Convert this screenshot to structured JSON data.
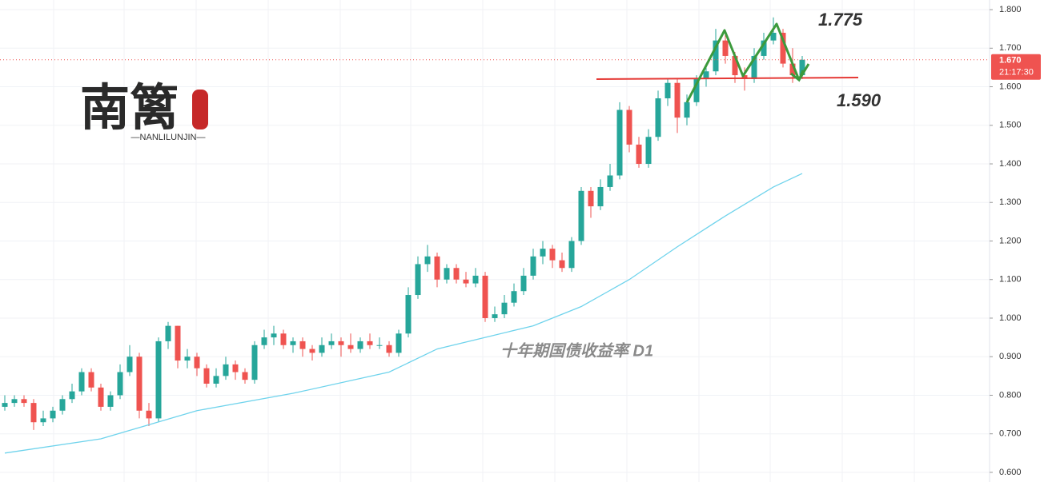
{
  "chart_data": {
    "type": "candlestick",
    "title": "十年期国债收益率  D1",
    "logo": "南篱",
    "logo_sub": "—NANLILUNJIN—",
    "annotations": [
      "1.775",
      "1.590"
    ],
    "up_color": "#26a69a",
    "down_color": "#ef5350",
    "grid": true,
    "ylim": [
      0.575,
      1.825
    ],
    "yticks": [
      {
        "value": 0.6,
        "label": "0.600"
      },
      {
        "value": 0.7,
        "label": "0.700"
      },
      {
        "value": 0.8,
        "label": "0.800"
      },
      {
        "value": 0.9,
        "label": "0.900"
      },
      {
        "value": 1.0,
        "label": "1.000"
      },
      {
        "value": 1.1,
        "label": "1.100"
      },
      {
        "value": 1.2,
        "label": "1.200"
      },
      {
        "value": 1.3,
        "label": "1.300"
      },
      {
        "value": 1.4,
        "label": "1.400"
      },
      {
        "value": 1.5,
        "label": "1.500"
      },
      {
        "value": 1.6,
        "label": "1.600"
      },
      {
        "value": 1.7,
        "label": "1.700"
      },
      {
        "value": 1.8,
        "label": "1.800"
      }
    ],
    "last_price": {
      "value": 1.67,
      "label": "1.670"
    },
    "countdown": "21:17:30",
    "candles": [
      [
        0.77,
        0.8,
        0.76,
        0.78
      ],
      [
        0.78,
        0.8,
        0.77,
        0.79
      ],
      [
        0.79,
        0.8,
        0.77,
        0.78
      ],
      [
        0.78,
        0.79,
        0.71,
        0.73
      ],
      [
        0.73,
        0.76,
        0.72,
        0.74
      ],
      [
        0.74,
        0.77,
        0.73,
        0.76
      ],
      [
        0.76,
        0.8,
        0.75,
        0.79
      ],
      [
        0.79,
        0.83,
        0.78,
        0.81
      ],
      [
        0.81,
        0.87,
        0.8,
        0.86
      ],
      [
        0.86,
        0.87,
        0.81,
        0.82
      ],
      [
        0.82,
        0.83,
        0.76,
        0.77
      ],
      [
        0.77,
        0.81,
        0.76,
        0.8
      ],
      [
        0.8,
        0.88,
        0.79,
        0.86
      ],
      [
        0.86,
        0.93,
        0.85,
        0.9
      ],
      [
        0.9,
        0.91,
        0.74,
        0.76
      ],
      [
        0.76,
        0.78,
        0.72,
        0.74
      ],
      [
        0.74,
        0.95,
        0.73,
        0.94
      ],
      [
        0.94,
        0.99,
        0.92,
        0.98
      ],
      [
        0.98,
        0.98,
        0.87,
        0.89
      ],
      [
        0.89,
        0.92,
        0.87,
        0.9
      ],
      [
        0.9,
        0.91,
        0.85,
        0.87
      ],
      [
        0.87,
        0.88,
        0.82,
        0.83
      ],
      [
        0.83,
        0.87,
        0.82,
        0.85
      ],
      [
        0.85,
        0.9,
        0.84,
        0.88
      ],
      [
        0.88,
        0.89,
        0.84,
        0.86
      ],
      [
        0.86,
        0.87,
        0.83,
        0.84
      ],
      [
        0.84,
        0.94,
        0.83,
        0.93
      ],
      [
        0.93,
        0.97,
        0.92,
        0.95
      ],
      [
        0.95,
        0.98,
        0.93,
        0.96
      ],
      [
        0.96,
        0.97,
        0.92,
        0.93
      ],
      [
        0.93,
        0.95,
        0.91,
        0.94
      ],
      [
        0.94,
        0.95,
        0.9,
        0.92
      ],
      [
        0.92,
        0.93,
        0.89,
        0.91
      ],
      [
        0.91,
        0.95,
        0.9,
        0.93
      ],
      [
        0.93,
        0.96,
        0.92,
        0.94
      ],
      [
        0.94,
        0.95,
        0.9,
        0.93
      ],
      [
        0.93,
        0.96,
        0.91,
        0.92
      ],
      [
        0.92,
        0.95,
        0.91,
        0.94
      ],
      [
        0.94,
        0.96,
        0.92,
        0.93
      ],
      [
        0.93,
        0.95,
        0.92,
        0.93
      ],
      [
        0.93,
        0.94,
        0.9,
        0.91
      ],
      [
        0.91,
        0.97,
        0.9,
        0.96
      ],
      [
        0.96,
        1.08,
        0.95,
        1.06
      ],
      [
        1.06,
        1.16,
        1.05,
        1.14
      ],
      [
        1.14,
        1.19,
        1.12,
        1.16
      ],
      [
        1.16,
        1.17,
        1.08,
        1.1
      ],
      [
        1.1,
        1.14,
        1.09,
        1.13
      ],
      [
        1.13,
        1.14,
        1.09,
        1.1
      ],
      [
        1.1,
        1.12,
        1.08,
        1.09
      ],
      [
        1.09,
        1.13,
        1.08,
        1.11
      ],
      [
        1.11,
        1.12,
        0.99,
        1.0
      ],
      [
        1.0,
        1.03,
        0.99,
        1.01
      ],
      [
        1.01,
        1.06,
        1.0,
        1.04
      ],
      [
        1.04,
        1.09,
        1.03,
        1.07
      ],
      [
        1.07,
        1.13,
        1.06,
        1.11
      ],
      [
        1.11,
        1.18,
        1.1,
        1.16
      ],
      [
        1.16,
        1.2,
        1.14,
        1.18
      ],
      [
        1.18,
        1.19,
        1.13,
        1.15
      ],
      [
        1.15,
        1.17,
        1.12,
        1.13
      ],
      [
        1.13,
        1.21,
        1.12,
        1.2
      ],
      [
        1.2,
        1.34,
        1.19,
        1.33
      ],
      [
        1.33,
        1.34,
        1.26,
        1.29
      ],
      [
        1.29,
        1.36,
        1.28,
        1.34
      ],
      [
        1.34,
        1.4,
        1.33,
        1.37
      ],
      [
        1.37,
        1.56,
        1.36,
        1.54
      ],
      [
        1.54,
        1.55,
        1.43,
        1.45
      ],
      [
        1.45,
        1.47,
        1.39,
        1.4
      ],
      [
        1.4,
        1.49,
        1.39,
        1.47
      ],
      [
        1.47,
        1.59,
        1.46,
        1.57
      ],
      [
        1.57,
        1.62,
        1.55,
        1.61
      ],
      [
        1.61,
        1.62,
        1.48,
        1.52
      ],
      [
        1.52,
        1.58,
        1.5,
        1.56
      ],
      [
        1.56,
        1.63,
        1.55,
        1.62
      ],
      [
        1.62,
        1.66,
        1.6,
        1.64
      ],
      [
        1.64,
        1.75,
        1.63,
        1.72
      ],
      [
        1.72,
        1.74,
        1.66,
        1.68
      ],
      [
        1.68,
        1.69,
        1.61,
        1.63
      ],
      [
        1.63,
        1.65,
        1.59,
        1.62
      ],
      [
        1.62,
        1.7,
        1.61,
        1.68
      ],
      [
        1.68,
        1.74,
        1.67,
        1.72
      ],
      [
        1.72,
        1.78,
        1.71,
        1.74
      ],
      [
        1.74,
        1.75,
        1.65,
        1.66
      ],
      [
        1.66,
        1.7,
        1.61,
        1.63
      ],
      [
        1.63,
        1.68,
        1.62,
        1.67
      ]
    ],
    "ma": {
      "color": "#6fd3ec",
      "x": [
        0,
        10,
        20,
        30,
        40,
        45,
        50,
        55,
        60,
        65,
        70,
        75,
        80,
        83
      ],
      "values": [
        0.65,
        0.687,
        0.76,
        0.805,
        0.86,
        0.92,
        0.95,
        0.98,
        1.03,
        1.1,
        1.185,
        1.265,
        1.34,
        1.375
      ]
    }
  }
}
